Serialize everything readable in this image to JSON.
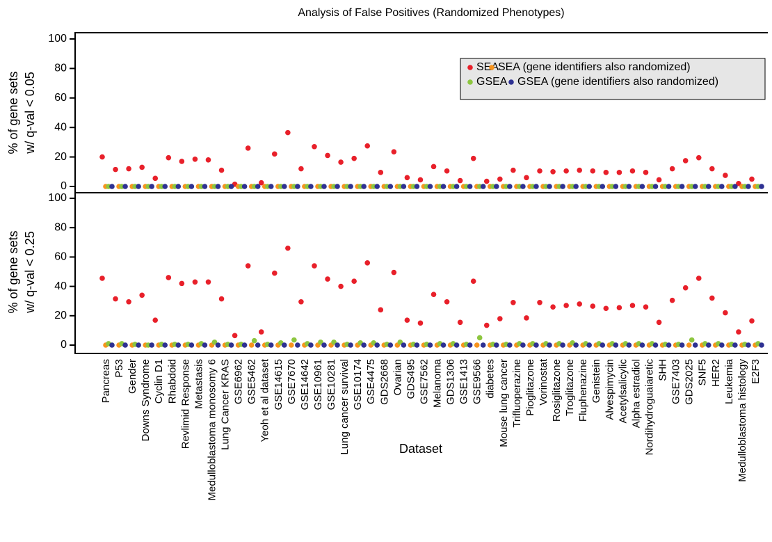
{
  "chart_data": [
    {
      "type": "scatter",
      "title": "Analysis of False Positives (Randomized Phenotypes)",
      "ylabel": [
        "% of gene sets",
        "w/ q-val < 0.05"
      ],
      "ylim": [
        0,
        100
      ],
      "yticks": [
        0,
        20,
        40,
        60,
        80,
        100
      ],
      "series": [
        {
          "name": "SEA",
          "color": "#e8202a",
          "values": [
            20,
            11.5,
            12,
            13,
            5.5,
            19.5,
            17,
            18.5,
            18,
            11,
            1.5,
            26,
            2.5,
            22,
            36.5,
            12,
            27,
            21,
            16.5,
            19,
            27.5,
            9.5,
            23.5,
            6,
            4.5,
            13.5,
            10.5,
            4,
            19,
            3.5,
            5,
            11,
            6,
            10.5,
            10,
            10.5,
            11,
            10.5,
            9.5,
            9.5,
            10.5,
            9.5,
            4.5,
            12,
            17.5,
            19.5,
            12,
            7.5,
            2,
            5
          ]
        },
        {
          "name": "SEA (gene identifiers also randomized)",
          "color": "#f7941d",
          "values": [
            0,
            0,
            0,
            0,
            0,
            0,
            0,
            0,
            0,
            0,
            0,
            0,
            0,
            0,
            0,
            0,
            0,
            0,
            0,
            0,
            0,
            0,
            0,
            0,
            0,
            0,
            0,
            0,
            0,
            0,
            0,
            0,
            0,
            0,
            0,
            0,
            0,
            0,
            0,
            0,
            0,
            0,
            0,
            0,
            0,
            0,
            0,
            0,
            0,
            0
          ]
        },
        {
          "name": "GSEA",
          "color": "#8dc63f",
          "values": [
            0,
            0,
            0,
            0,
            0,
            0,
            0,
            0,
            0,
            0,
            0,
            0,
            0,
            0,
            0,
            0,
            0,
            0,
            0,
            0,
            0,
            0,
            0,
            0,
            0,
            0,
            0,
            0,
            0,
            0,
            0,
            0,
            0,
            0,
            0,
            0,
            0,
            0,
            0,
            0,
            0,
            0,
            0,
            0,
            0,
            0,
            0,
            0,
            0,
            0
          ]
        },
        {
          "name": "GSEA (gene identifiers also randomized)",
          "color": "#2e3192",
          "values": [
            0,
            0,
            0,
            0,
            0,
            0,
            0,
            0,
            0,
            0,
            0,
            0,
            0,
            0,
            0,
            0,
            0,
            0,
            0,
            0,
            0,
            0,
            0,
            0,
            0,
            0,
            0,
            0,
            0,
            0,
            0,
            0,
            0,
            0,
            0,
            0,
            0,
            0,
            0,
            0,
            0,
            0,
            0,
            0,
            0,
            0,
            0,
            0,
            0,
            0
          ]
        }
      ]
    },
    {
      "type": "scatter",
      "xlabel": "Dataset",
      "ylabel": [
        "% of gene sets",
        "w/ q-val < 0.25"
      ],
      "ylim": [
        0,
        100
      ],
      "yticks": [
        0,
        20,
        40,
        60,
        80,
        100
      ],
      "categories": [
        "Pancreas",
        "P53",
        "Gender",
        "Downs Syndrome",
        "Cyclin D1",
        "Rhabdoid",
        "Revlimid Response",
        "Metastasis",
        "Medulloblastoma monosomy 6",
        "Lung Cancer KRAS",
        "GSE6962",
        "GSE5462",
        "Yeoh et al dataset",
        "GSE14615",
        "GSE7670",
        "GSE14642",
        "GSE10961",
        "GSE10281",
        "Lung cancer survival",
        "GSE10174",
        "GSE4475",
        "GDS2668",
        "Ovarian",
        "GDS495",
        "GSE7562",
        "Melanoma",
        "GDS1306",
        "GSE1413",
        "GSE9566",
        "diabetes",
        "Mouse lung cancer",
        "Trifluoperazine",
        "Pioglitazone",
        "Vorinostat",
        "Rosiglitazone",
        "Troglitazone",
        "Fluphenazine",
        "Genistein",
        "Alvespimycin",
        "Acetylsalicylic",
        "Alpha estradiol",
        "Nordihydroguaiaretic",
        "SHH",
        "GSE7403",
        "GDS2025",
        "SNF5",
        "HER2",
        "Leukemia",
        "Medulloblastoma histology",
        "E2F3"
      ],
      "series": [
        {
          "color": "#e8202a",
          "values": [
            45.5,
            31.5,
            29.5,
            34,
            17,
            46,
            42,
            43,
            43,
            31.5,
            6.5,
            54,
            9,
            49,
            66,
            29.5,
            54,
            45,
            40,
            43.5,
            56,
            24,
            49.5,
            17,
            15,
            34.5,
            29.5,
            15.5,
            43.5,
            13.5,
            18,
            29,
            18.5,
            29,
            26,
            27,
            28,
            26.5,
            25,
            25.5,
            27,
            26,
            15.5,
            30.5,
            39,
            45.5,
            32,
            22,
            9,
            16.5
          ]
        },
        {
          "color": "#f7941d",
          "values": [
            0,
            0,
            0,
            0,
            0,
            0,
            0,
            0,
            0,
            0,
            0,
            0,
            0,
            0,
            0,
            0,
            0,
            0,
            0,
            0,
            0,
            0,
            0,
            0,
            0,
            0,
            0,
            0,
            0,
            0,
            0,
            0,
            0,
            0,
            0,
            0,
            0,
            0,
            0,
            0,
            0,
            0,
            0,
            0,
            0,
            0,
            0,
            0,
            0,
            0
          ]
        },
        {
          "color": "#8dc63f",
          "values": [
            1,
            1,
            0.5,
            0,
            0.5,
            0.5,
            0.5,
            1,
            2,
            0.5,
            0.5,
            3,
            0.5,
            1.5,
            3.5,
            1,
            2,
            2,
            0.5,
            1.5,
            1.5,
            0.5,
            2,
            0.5,
            0.5,
            1,
            1,
            0.5,
            5,
            0.5,
            0.5,
            1,
            1,
            1,
            1,
            1.5,
            1,
            1,
            1,
            1,
            1,
            1,
            0.5,
            0.5,
            3.5,
            1,
            1,
            0.5,
            0.5,
            1
          ]
        },
        {
          "color": "#2e3192",
          "values": [
            0,
            0,
            0,
            0,
            0,
            0,
            0,
            0,
            0,
            0,
            0,
            0,
            0,
            0,
            0,
            0,
            0,
            0,
            0,
            0,
            0,
            0,
            0,
            0,
            0,
            0,
            0,
            0,
            0,
            0,
            0,
            0,
            0,
            0,
            0,
            0,
            0,
            0,
            0,
            0,
            0,
            0,
            0,
            0,
            0,
            0,
            0,
            0,
            0,
            0
          ]
        }
      ]
    }
  ]
}
